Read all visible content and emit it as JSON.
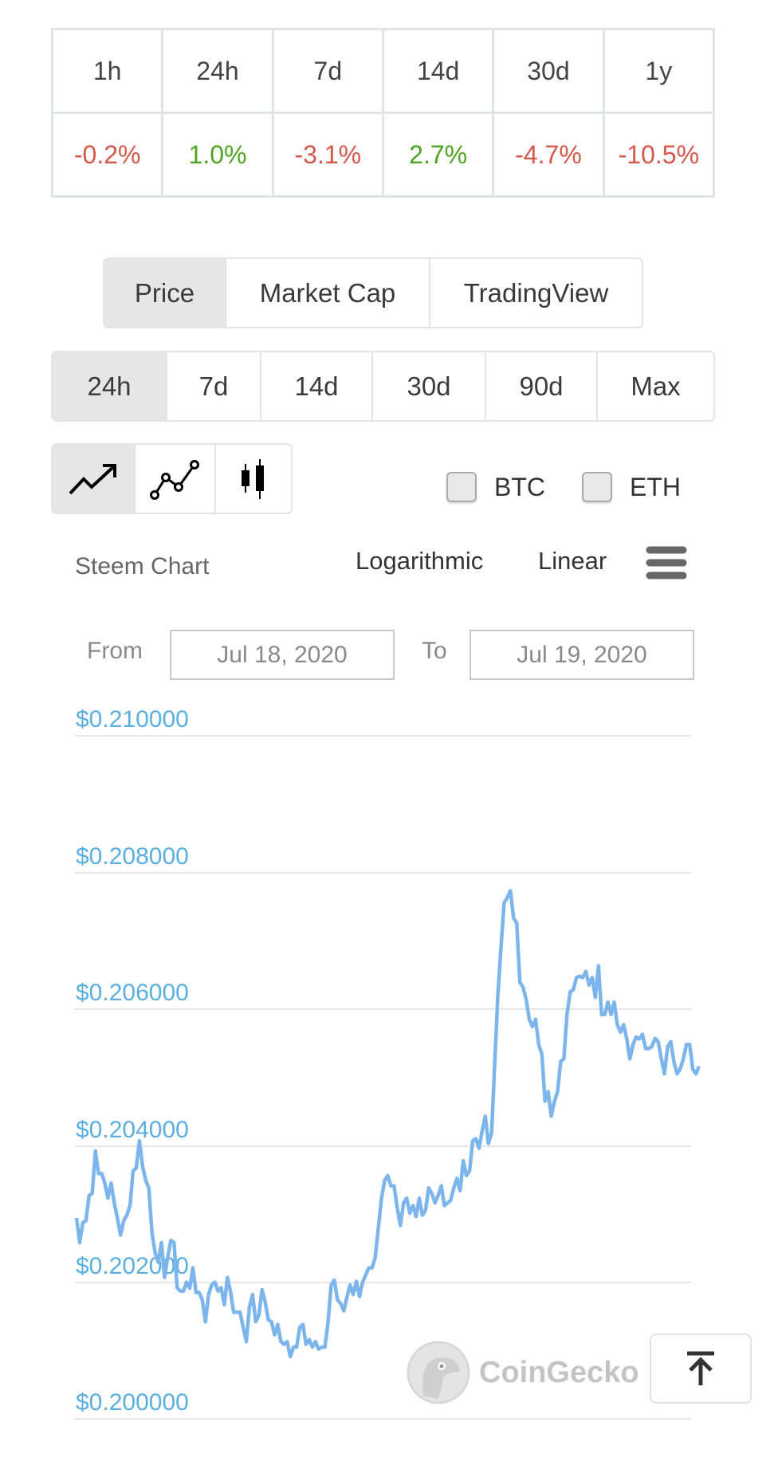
{
  "change_table": {
    "periods": [
      "1h",
      "24h",
      "7d",
      "14d",
      "30d",
      "1y"
    ],
    "values": [
      {
        "text": "-0.2%",
        "trend": "down"
      },
      {
        "text": "1.0%",
        "trend": "up"
      },
      {
        "text": "-3.1%",
        "trend": "down"
      },
      {
        "text": "2.7%",
        "trend": "up"
      },
      {
        "text": "-4.7%",
        "trend": "down"
      },
      {
        "text": "-10.5%",
        "trend": "down"
      }
    ],
    "colors": {
      "up": "#4da51f",
      "down": "#d5584a"
    }
  },
  "chart_tabs": {
    "items": [
      "Price",
      "Market Cap",
      "TradingView"
    ],
    "active": "Price"
  },
  "range_tabs": {
    "items": [
      "24h",
      "7d",
      "14d",
      "30d",
      "90d",
      "Max"
    ],
    "active": "24h"
  },
  "chart_types": {
    "items": [
      "line-trend-icon",
      "line-markers-icon",
      "candlestick-icon"
    ],
    "active": "line-trend-icon"
  },
  "compare": {
    "btc_label": "BTC",
    "btc_checked": false,
    "eth_label": "ETH",
    "eth_checked": false
  },
  "chart_header": {
    "title": "Steem Chart",
    "log_label": "Logarithmic",
    "linear_label": "Linear",
    "menu_icon": "hamburger-icon"
  },
  "date_range": {
    "from_label": "From",
    "from_value": "Jul 18, 2020",
    "to_label": "To",
    "to_value": "Jul 19, 2020"
  },
  "watermark": "CoinGecko",
  "scroll_top_icon": "arrow-up-to-top-icon",
  "chart_data": {
    "type": "line",
    "ylim": [
      0.2,
      0.21
    ],
    "yticks": [
      "$0.210000",
      "$0.208000",
      "$0.206000",
      "$0.204000",
      "$0.202000",
      "$0.200000"
    ],
    "grid": true,
    "line_color": "#7cb5ec",
    "tick_color": "#5aaee0",
    "x_start": "Jul 18, 2020",
    "x_end": "Jul 19, 2020",
    "values": [
      0.20294,
      0.20258,
      0.20287,
      0.2029,
      0.20327,
      0.2033,
      0.20392,
      0.20359,
      0.20359,
      0.20345,
      0.20323,
      0.20345,
      0.20316,
      0.20294,
      0.20269,
      0.2029,
      0.20298,
      0.20312,
      0.20363,
      0.20367,
      0.20407,
      0.2037,
      0.20349,
      0.20338,
      0.20272,
      0.20243,
      0.20229,
      0.20258,
      0.20207,
      0.20236,
      0.20261,
      0.20258,
      0.20192,
      0.20187,
      0.20187,
      0.202,
      0.20191,
      0.20221,
      0.20185,
      0.20185,
      0.20174,
      0.20142,
      0.20182,
      0.20196,
      0.202,
      0.20187,
      0.20192,
      0.20167,
      0.20207,
      0.20185,
      0.20156,
      0.20156,
      0.20156,
      0.20134,
      0.20113,
      0.20163,
      0.20182,
      0.20142,
      0.20152,
      0.20189,
      0.20171,
      0.20145,
      0.20142,
      0.20123,
      0.20138,
      0.20113,
      0.20109,
      0.20113,
      0.20091,
      0.20105,
      0.20105,
      0.20134,
      0.20138,
      0.20109,
      0.20116,
      0.20105,
      0.20113,
      0.20102,
      0.20105,
      0.20105,
      0.20142,
      0.20196,
      0.20203,
      0.20174,
      0.20169,
      0.20158,
      0.20178,
      0.20196,
      0.20182,
      0.20201,
      0.20179,
      0.202,
      0.20211,
      0.20221,
      0.20221,
      0.20236,
      0.2028,
      0.20323,
      0.20349,
      0.20356,
      0.20341,
      0.20341,
      0.20309,
      0.20283,
      0.20316,
      0.20323,
      0.20301,
      0.20312,
      0.20296,
      0.20323,
      0.20298,
      0.20305,
      0.20338,
      0.2033,
      0.20316,
      0.20327,
      0.20341,
      0.20312,
      0.20316,
      0.2032,
      0.20338,
      0.20352,
      0.20334,
      0.20378,
      0.20356,
      0.20363,
      0.20407,
      0.2041,
      0.20396,
      0.20421,
      0.20443,
      0.20403,
      0.20418,
      0.20519,
      0.20621,
      0.2069,
      0.20755,
      0.20763,
      0.20773,
      0.20733,
      0.20726,
      0.20639,
      0.20632,
      0.20614,
      0.20585,
      0.20574,
      0.20585,
      0.20548,
      0.20534,
      0.20465,
      0.20479,
      0.20443,
      0.20465,
      0.20479,
      0.20523,
      0.20527,
      0.20592,
      0.20625,
      0.20628,
      0.20646,
      0.20648,
      0.20646,
      0.20655,
      0.20635,
      0.20646,
      0.20617,
      0.20663,
      0.20592,
      0.20592,
      0.2061,
      0.20592,
      0.2061,
      0.20577,
      0.20566,
      0.20577,
      0.20556,
      0.20527,
      0.20548,
      0.20559,
      0.20556,
      0.20563,
      0.20542,
      0.20542,
      0.20545,
      0.20557,
      0.20552,
      0.20527,
      0.20505,
      0.20545,
      0.20552,
      0.20523,
      0.20505,
      0.20512,
      0.20527,
      0.20548,
      0.20548,
      0.20512,
      0.20505,
      0.20516
    ]
  }
}
